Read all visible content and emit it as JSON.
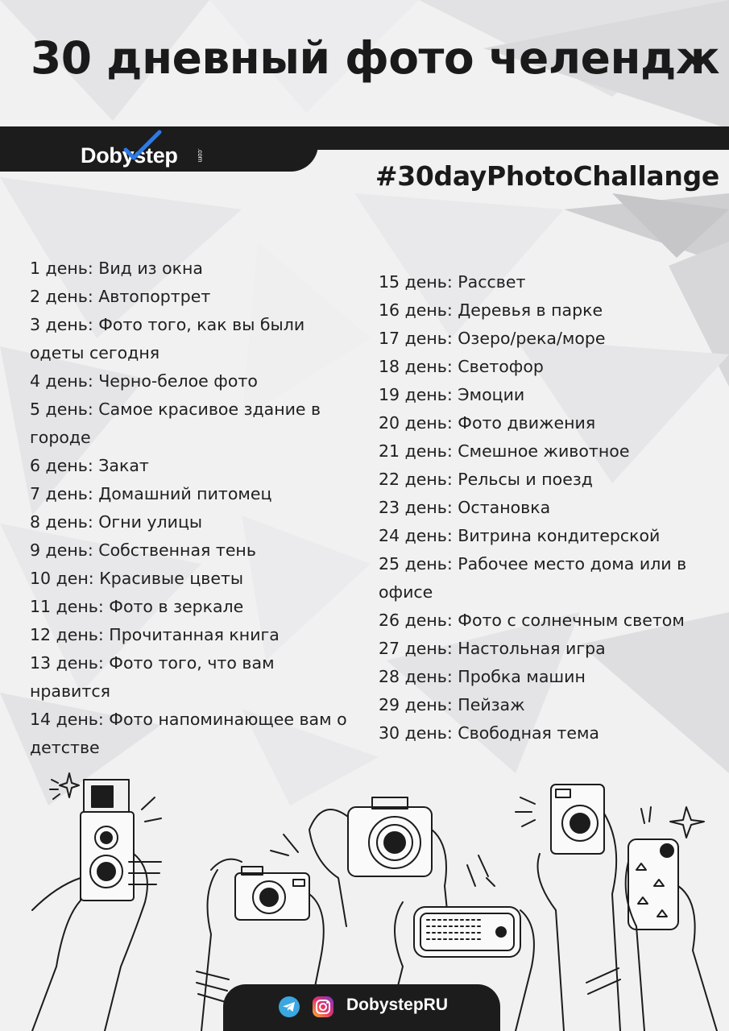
{
  "title": "30 дневный фото челендж",
  "brand": {
    "logo_text": "Dobystep",
    "logo_suffix": ".com"
  },
  "hashtag": "#30dayPhotoChallange",
  "days_left": [
    "1 день: Вид из окна",
    "2 день: Автопортрет",
    "3 день: Фото того, как вы были одеты сегодня",
    "4 день: Черно-белое фото",
    "5 день: Самое красивое здание в городе",
    "6 день: Закат",
    "7 день: Домашний питомец",
    "8 день: Огни улицы",
    "9 день: Собственная тень",
    "10 ден: Красивые цветы",
    "11 день: Фото в зеркале",
    "12 день: Прочитанная книга",
    "13 день: Фото того, что вам нравится",
    "14 день: Фото напоминающее вам о детстве"
  ],
  "days_right": [
    "15 день: Рассвет",
    "16 день: Деревья в парке",
    "17 день: Озеро/река/море",
    "18 день: Светофор",
    "19 день: Эмоции",
    "20 день: Фото движения",
    "21 день: Смешное животное",
    "22 день: Рельсы и поезд",
    "23 день: Остановка",
    "24 день: Витрина кондитерской",
    "25 день: Рабочее место дома или в офисе",
    "26 день: Фото с солнечным светом",
    "27 день: Настольная игра",
    "28 день: Пробка машин",
    "29 день: Пейзаж",
    "30 день: Свободная тема"
  ],
  "footer": {
    "handle": "DobystepRU",
    "icons": [
      "telegram-icon",
      "instagram-icon"
    ]
  },
  "colors": {
    "dark": "#1c1c1c",
    "background": "#f1f1f2",
    "text": "#202020"
  }
}
